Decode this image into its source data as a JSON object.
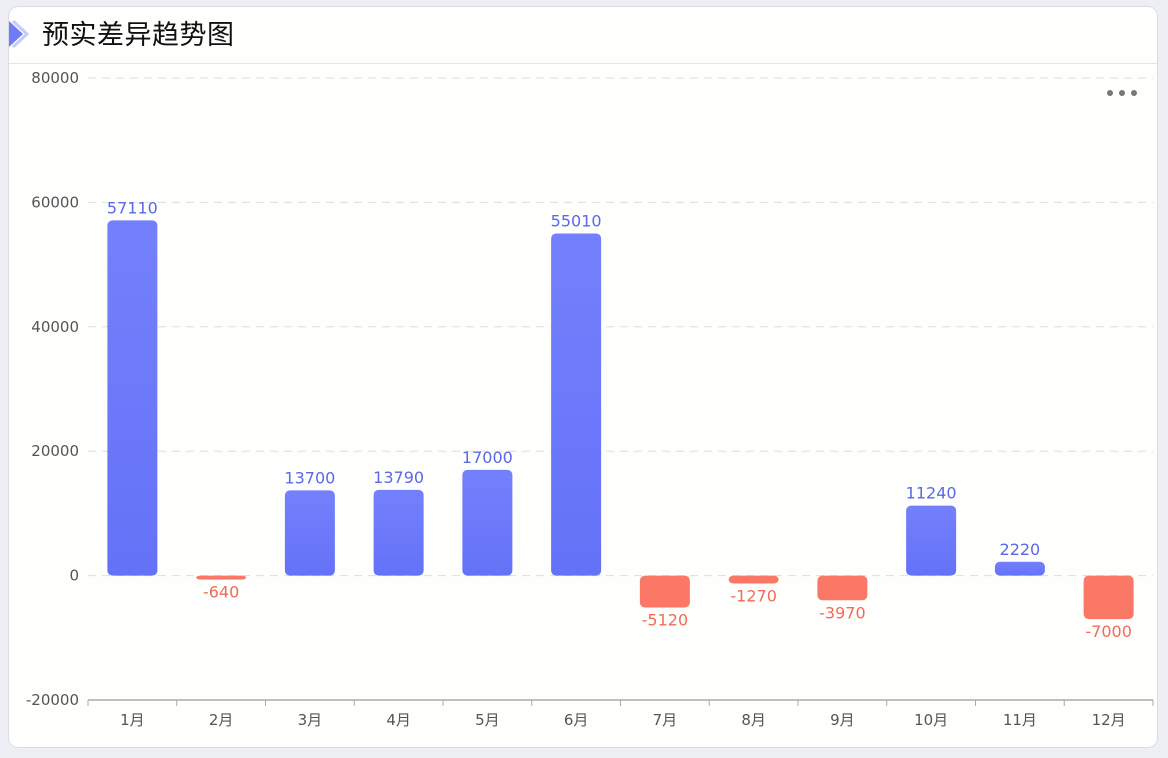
{
  "header": {
    "title": "预实差异趋势图"
  },
  "menu": {
    "icon": "more-dots-icon"
  },
  "colors": {
    "positive": "#6472f8",
    "negative": "#fb7766",
    "label_positive": "#5b68e8",
    "label_negative": "#f36b58"
  },
  "chart_data": {
    "type": "bar",
    "title": "预实差异趋势图",
    "categories": [
      "1月",
      "2月",
      "3月",
      "4月",
      "5月",
      "6月",
      "7月",
      "8月",
      "9月",
      "10月",
      "11月",
      "12月"
    ],
    "values": [
      57110,
      -640,
      13700,
      13790,
      17000,
      55010,
      -5120,
      -1270,
      -3970,
      11240,
      2220,
      -7000
    ],
    "ylim": [
      -20000,
      80000
    ],
    "yticks": [
      -20000,
      0,
      20000,
      40000,
      60000,
      80000
    ],
    "xlabel": "",
    "ylabel": "",
    "grid": true,
    "legend": "none"
  }
}
